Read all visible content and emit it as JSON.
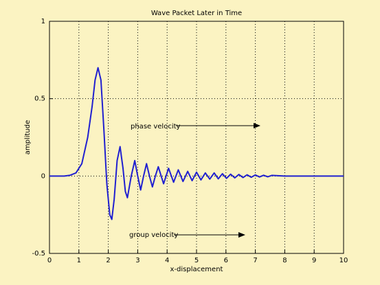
{
  "chart_data": {
    "type": "line",
    "title": "Wave Packet Later in Time",
    "xlabel": "x-displacement",
    "ylabel": "amplitude",
    "color": "#2020d0",
    "grid": true,
    "xlim": [
      0,
      10
    ],
    "ylim": [
      -0.5,
      1
    ],
    "xticks": [
      0,
      1,
      2,
      3,
      4,
      5,
      6,
      7,
      8,
      9,
      10
    ],
    "yticks": [
      -0.5,
      0,
      0.5,
      1
    ],
    "annotations": [
      "phase velocity",
      "group velocity"
    ],
    "x": [
      0,
      0.5,
      0.7,
      0.9,
      1.1,
      1.3,
      1.45,
      1.55,
      1.65,
      1.75,
      1.85,
      1.95,
      2.05,
      2.12,
      2.2,
      2.3,
      2.4,
      2.5,
      2.58,
      2.65,
      2.78,
      2.9,
      3.0,
      3.1,
      3.2,
      3.3,
      3.4,
      3.5,
      3.6,
      3.7,
      3.88,
      4.05,
      4.22,
      4.38,
      4.54,
      4.7,
      4.85,
      5.0,
      5.15,
      5.3,
      5.45,
      5.6,
      5.74,
      5.88,
      6.02,
      6.16,
      6.3,
      6.44,
      6.58,
      6.72,
      6.86,
      7.0,
      7.14,
      7.28,
      7.42,
      7.56,
      8.0,
      10
    ],
    "values": [
      0,
      0,
      0.005,
      0.02,
      0.08,
      0.25,
      0.45,
      0.62,
      0.7,
      0.62,
      0.3,
      -0.05,
      -0.25,
      -0.28,
      -0.15,
      0.1,
      0.19,
      0.05,
      -0.1,
      -0.14,
      0,
      0.1,
      0,
      -0.09,
      0,
      0.08,
      0,
      -0.07,
      0,
      0.06,
      -0.05,
      0.05,
      -0.04,
      0.04,
      -0.035,
      0.03,
      -0.03,
      0.025,
      -0.025,
      0.02,
      -0.02,
      0.02,
      -0.018,
      0.015,
      -0.015,
      0.012,
      -0.012,
      0.01,
      -0.01,
      0.008,
      -0.008,
      0.007,
      -0.006,
      0.005,
      -0.005,
      0.004,
      0,
      0
    ]
  }
}
